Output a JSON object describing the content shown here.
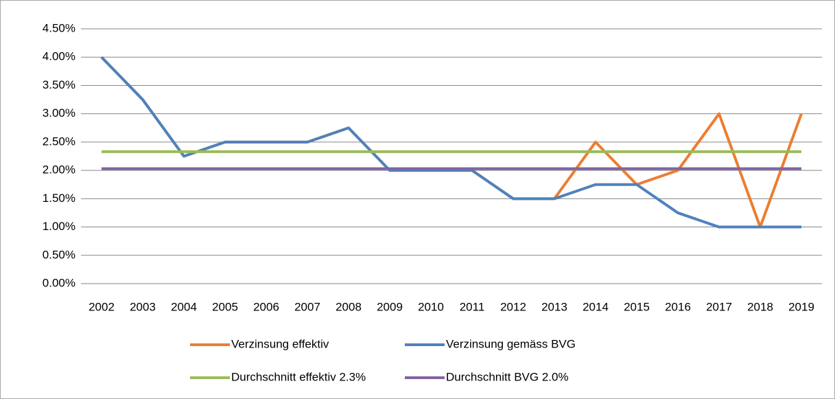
{
  "chart_data": {
    "type": "line",
    "categories": [
      "2002",
      "2003",
      "2004",
      "2005",
      "2006",
      "2007",
      "2008",
      "2009",
      "2010",
      "2011",
      "2012",
      "2013",
      "2014",
      "2015",
      "2016",
      "2017",
      "2018",
      "2019"
    ],
    "series": [
      {
        "name": "Verzinsung effektiv",
        "color": "#ED7D31",
        "values": [
          4.0,
          3.25,
          2.25,
          2.5,
          2.5,
          2.5,
          2.75,
          2.0,
          2.0,
          2.0,
          1.5,
          1.5,
          2.5,
          1.75,
          2.0,
          3.0,
          1.0,
          3.0
        ]
      },
      {
        "name": "Verzinsung gemäss BVG",
        "color": "#4F81BD",
        "values": [
          4.0,
          3.25,
          2.25,
          2.5,
          2.5,
          2.5,
          2.75,
          2.0,
          2.0,
          2.0,
          1.5,
          1.5,
          1.75,
          1.75,
          1.25,
          1.0,
          1.0,
          1.0
        ]
      },
      {
        "name": "Durchschnitt effektiv 2.3%",
        "color": "#9BBB59",
        "values": [
          2.33,
          2.33,
          2.33,
          2.33,
          2.33,
          2.33,
          2.33,
          2.33,
          2.33,
          2.33,
          2.33,
          2.33,
          2.33,
          2.33,
          2.33,
          2.33,
          2.33,
          2.33
        ]
      },
      {
        "name": "Durchschnitt BVG 2.0%",
        "color": "#8064A2",
        "values": [
          2.03,
          2.03,
          2.03,
          2.03,
          2.03,
          2.03,
          2.03,
          2.03,
          2.03,
          2.03,
          2.03,
          2.03,
          2.03,
          2.03,
          2.03,
          2.03,
          2.03,
          2.03
        ]
      }
    ],
    "ylim": [
      0,
      4.5
    ],
    "yticks": [
      {
        "value": 0,
        "label": "0.00%"
      },
      {
        "value": 0.5,
        "label": "0.50%"
      },
      {
        "value": 1,
        "label": "1.00%"
      },
      {
        "value": 1.5,
        "label": "1.50%"
      },
      {
        "value": 2,
        "label": "2.00%"
      },
      {
        "value": 2.5,
        "label": "2.50%"
      },
      {
        "value": 3,
        "label": "3.00%"
      },
      {
        "value": 3.5,
        "label": "3.50%"
      },
      {
        "value": 4,
        "label": "4.00%"
      },
      {
        "value": 4.5,
        "label": "4.50%"
      }
    ],
    "grid": true,
    "legend": "bottom"
  }
}
